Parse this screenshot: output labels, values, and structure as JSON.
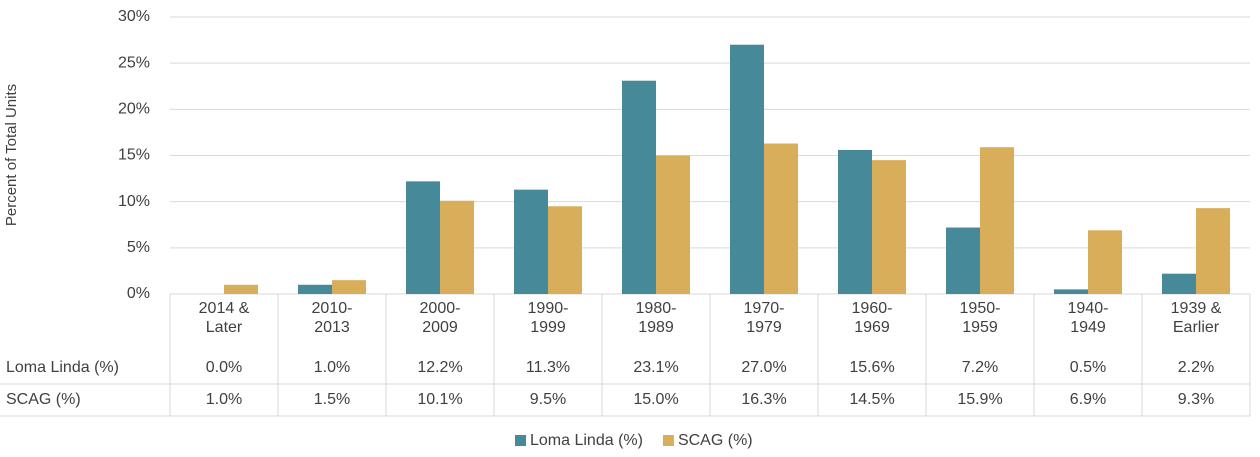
{
  "chart_data": {
    "type": "bar",
    "y_label": "Percent of Total Units",
    "categories": [
      "2014 & Later",
      "2010-2013",
      "2000-2009",
      "1990-1999",
      "1980-1989",
      "1970-1979",
      "1960-1969",
      "1950-1959",
      "1940-1949",
      "1939 & Earlier"
    ],
    "series": [
      {
        "name": "Loma Linda (%)",
        "color": "#468a99",
        "values": [
          0.0,
          1.0,
          12.2,
          11.3,
          23.1,
          27.0,
          15.6,
          7.2,
          0.5,
          2.2
        ],
        "value_labels": [
          "0.0%",
          "1.0%",
          "12.2%",
          "11.3%",
          "23.1%",
          "27.0%",
          "15.6%",
          "7.2%",
          "0.5%",
          "2.2%"
        ]
      },
      {
        "name": "SCAG (%)",
        "color": "#d9ae5a",
        "values": [
          1.0,
          1.5,
          10.1,
          9.5,
          15.0,
          16.3,
          14.5,
          15.9,
          6.9,
          9.3
        ],
        "value_labels": [
          "1.0%",
          "1.5%",
          "10.1%",
          "9.5%",
          "15.0%",
          "16.3%",
          "14.5%",
          "15.9%",
          "6.9%",
          "9.3%"
        ]
      }
    ],
    "ylim": [
      0,
      30
    ],
    "yticks": [
      {
        "value": 0,
        "label": "0%"
      },
      {
        "value": 5,
        "label": "5%"
      },
      {
        "value": 10,
        "label": "10%"
      },
      {
        "value": 15,
        "label": "15%"
      },
      {
        "value": 20,
        "label": "20%"
      },
      {
        "value": 25,
        "label": "25%"
      },
      {
        "value": 30,
        "label": "30%"
      }
    ],
    "grid": true,
    "legend": "bottom"
  }
}
